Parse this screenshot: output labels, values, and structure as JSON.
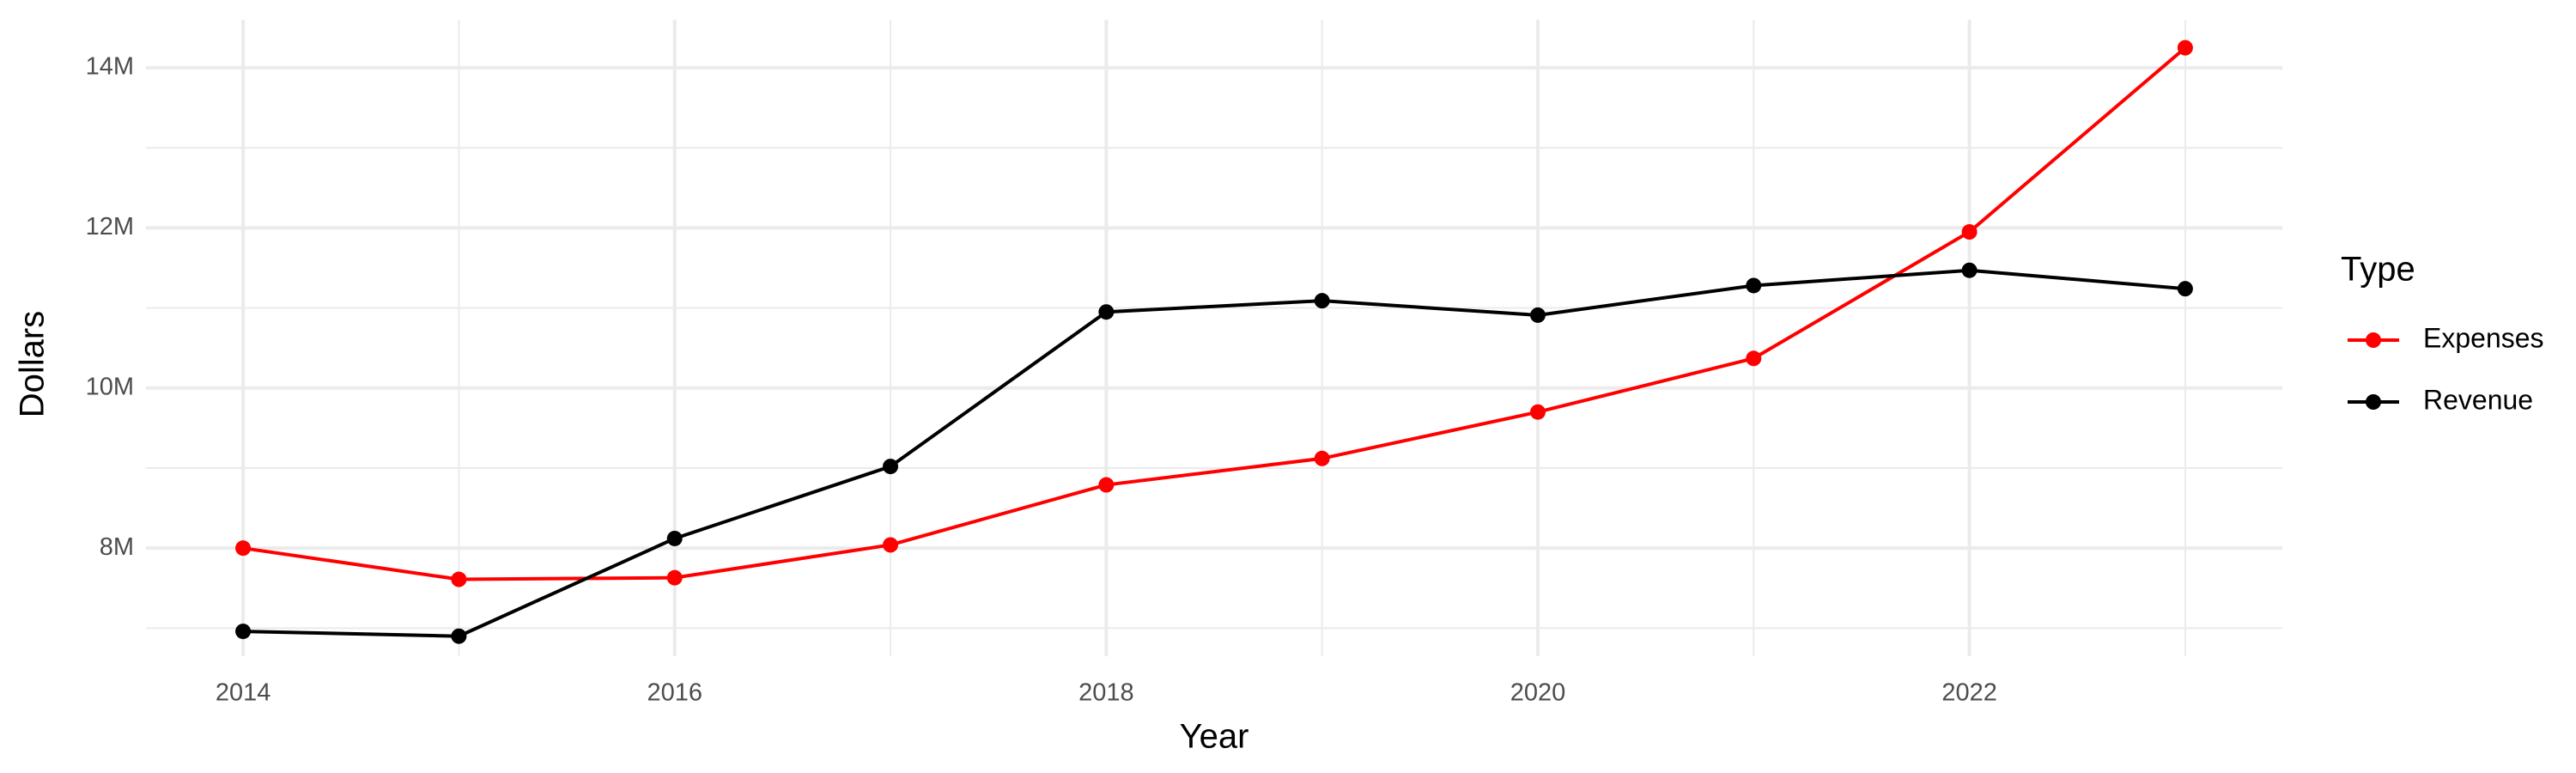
{
  "chart_data": {
    "type": "line",
    "x_label": "Year",
    "y_label": "Dollars",
    "legend_title": "Type",
    "legend_position": "right",
    "x": [
      2014,
      2015,
      2016,
      2017,
      2018,
      2019,
      2020,
      2021,
      2022,
      2023
    ],
    "series": [
      {
        "name": "Expenses",
        "color": "#ff0000",
        "values": [
          8000000,
          7610000,
          7630000,
          8040000,
          8790000,
          9120000,
          9700000,
          10370000,
          11950000,
          14250000
        ]
      },
      {
        "name": "Revenue",
        "color": "#000000",
        "values": [
          6960000,
          6900000,
          8120000,
          9020000,
          10950000,
          11090000,
          10910000,
          11280000,
          11470000,
          11240000
        ]
      }
    ],
    "xlim": [
      2013.55,
      2023.45
    ],
    "ylim": [
      6650000,
      14600000
    ],
    "xticks": [
      2014,
      2016,
      2018,
      2020,
      2022
    ],
    "yticks": [
      {
        "value": 8000000,
        "label": "8M"
      },
      {
        "value": 10000000,
        "label": "10M"
      },
      {
        "value": 12000000,
        "label": "12M"
      },
      {
        "value": 14000000,
        "label": "14M"
      }
    ],
    "x_minor_ticks": [
      2015,
      2017,
      2019,
      2021,
      2023
    ],
    "y_minor_ticks": [
      7000000,
      9000000,
      11000000,
      13000000
    ],
    "grid": true
  }
}
